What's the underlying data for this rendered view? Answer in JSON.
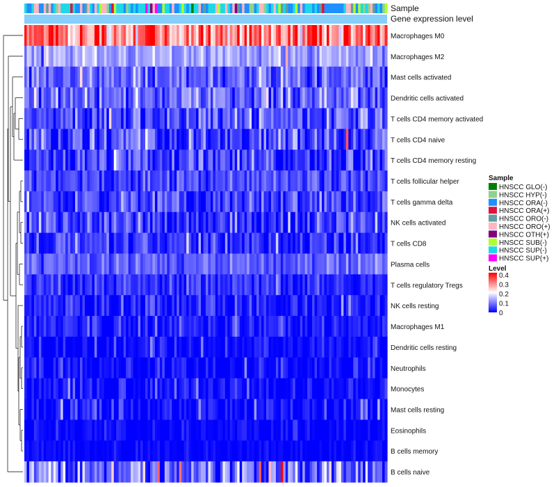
{
  "chart_data": {
    "type": "heatmap",
    "title": "",
    "annotation_labels": [
      "Sample",
      "Gene expression level"
    ],
    "rows": [
      {
        "name": "Macrophages M0",
        "mean": 0.3,
        "sd": 0.07
      },
      {
        "name": "Macrophages M2",
        "mean": 0.13,
        "sd": 0.035
      },
      {
        "name": "Mast cells activated",
        "mean": 0.07,
        "sd": 0.04
      },
      {
        "name": "Dendritic cells activated",
        "mean": 0.08,
        "sd": 0.05
      },
      {
        "name": "T cells CD4 memory activated",
        "mean": 0.06,
        "sd": 0.05
      },
      {
        "name": "T cells CD4 naive",
        "mean": 0.05,
        "sd": 0.06
      },
      {
        "name": "T cells CD4 memory resting",
        "mean": 0.04,
        "sd": 0.05
      },
      {
        "name": "T cells follicular helper",
        "mean": 0.05,
        "sd": 0.03
      },
      {
        "name": "T cells gamma delta",
        "mean": 0.05,
        "sd": 0.04
      },
      {
        "name": "NK cells activated",
        "mean": 0.04,
        "sd": 0.04
      },
      {
        "name": "T cells CD8",
        "mean": 0.03,
        "sd": 0.04
      },
      {
        "name": "Plasma cells",
        "mean": 0.07,
        "sd": 0.03
      },
      {
        "name": "T cells regulatory  Tregs",
        "mean": 0.03,
        "sd": 0.03
      },
      {
        "name": "NK cells resting",
        "mean": 0.02,
        "sd": 0.035
      },
      {
        "name": "Macrophages M1",
        "mean": 0.025,
        "sd": 0.03
      },
      {
        "name": "Dendritic cells resting",
        "mean": 0.01,
        "sd": 0.03
      },
      {
        "name": "Neutrophils",
        "mean": 0.005,
        "sd": 0.03
      },
      {
        "name": "Monocytes",
        "mean": 0.005,
        "sd": 0.03
      },
      {
        "name": "Mast cells resting",
        "mean": 0.005,
        "sd": 0.035
      },
      {
        "name": "Eosinophils",
        "mean": 0.002,
        "sd": 0.015
      },
      {
        "name": "B cells memory",
        "mean": 0.002,
        "sd": 0.015
      },
      {
        "name": "B cells naive",
        "mean": 0.08,
        "sd": 0.07
      }
    ],
    "n_samples": 150,
    "sample_legend": {
      "title": "Sample",
      "groups": [
        {
          "label": "HNSCC GLO(-)",
          "color": "#008000"
        },
        {
          "label": "HNSCC HYP(-)",
          "color": "#8fd18f"
        },
        {
          "label": "HNSCC ORA(-)",
          "color": "#1e90ff"
        },
        {
          "label": "HNSCC ORA(+)",
          "color": "#dc143c"
        },
        {
          "label": "HNSCC ORO(-)",
          "color": "#5f9ea0"
        },
        {
          "label": "HNSCC ORO(+)",
          "color": "#ffb6c1"
        },
        {
          "label": "HNSCC OTH(+)",
          "color": "#800080"
        },
        {
          "label": "HNSCC SUB(-)",
          "color": "#adff2f"
        },
        {
          "label": "HNSCC SUP(-)",
          "color": "#1ed8e8"
        },
        {
          "label": "HNSCC SUP(+)",
          "color": "#ff00ff"
        }
      ],
      "weights": [
        0.02,
        0.06,
        0.25,
        0.05,
        0.06,
        0.16,
        0.02,
        0.04,
        0.3,
        0.04
      ]
    },
    "level_legend": {
      "title": "Level",
      "ticks": [
        "0.4",
        "0.3",
        "0.2",
        "0.1",
        "0"
      ],
      "range": [
        0,
        0.4
      ],
      "colors": [
        "#0000ff",
        "#ffffff",
        "#ff0000"
      ]
    },
    "gene_expression_bar_color": "#87cefa"
  }
}
